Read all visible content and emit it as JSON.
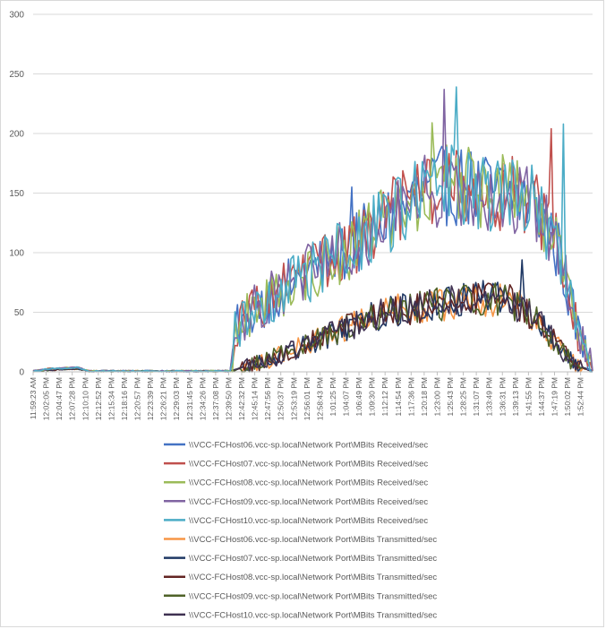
{
  "chart_data": {
    "type": "line",
    "title": "",
    "xlabel": "",
    "ylabel": "",
    "ylim": [
      0,
      300
    ],
    "yticks": [
      0,
      50,
      100,
      150,
      200,
      250,
      300
    ],
    "grid": true,
    "legend_position": "bottom",
    "x_tick_labels": [
      "11:59:23 AM",
      "12:02:05 PM",
      "12:04:47 PM",
      "12:07:28 PM",
      "12:10:10 PM",
      "12:12:52 PM",
      "12:15:34 PM",
      "12:18:16 PM",
      "12:20:57 PM",
      "12:23:39 PM",
      "12:26:21 PM",
      "12:29:03 PM",
      "12:31:45 PM",
      "12:34:26 PM",
      "12:37:08 PM",
      "12:39:50 PM",
      "12:42:32 PM",
      "12:45:14 PM",
      "12:47:56 PM",
      "12:50:37 PM",
      "12:53:19 PM",
      "12:56:01 PM",
      "12:58:43 PM",
      "1:01:25 PM",
      "1:04:07 PM",
      "1:06:49 PM",
      "1:09:30 PM",
      "1:12:12 PM",
      "1:14:54 PM",
      "1:17:36 PM",
      "1:20:18 PM",
      "1:23:00 PM",
      "1:25:43 PM",
      "1:28:25 PM",
      "1:31:07 PM",
      "1:33:49 PM",
      "1:36:31 PM",
      "1:39:13 PM",
      "1:41:55 PM",
      "1:44:37 PM",
      "1:47:19 PM",
      "1:50:02 PM",
      "1:52:44 PM"
    ],
    "x_tick_positions": [
      0,
      0.0233,
      0.0466,
      0.0699,
      0.0932,
      0.1165,
      0.1398,
      0.1631,
      0.1864,
      0.2097,
      0.233,
      0.2563,
      0.2796,
      0.3029,
      0.3262,
      0.3495,
      0.3728,
      0.3961,
      0.4194,
      0.4427,
      0.466,
      0.4893,
      0.5126,
      0.5359,
      0.5592,
      0.5825,
      0.6058,
      0.6291,
      0.6524,
      0.6757,
      0.699,
      0.7223,
      0.7456,
      0.7689,
      0.7922,
      0.8155,
      0.8388,
      0.8621,
      0.8854,
      0.9087,
      0.932,
      0.9553,
      0.9786
    ],
    "series": [
      {
        "name": "\\\\VCC-FCHost06.vcc-sp.local\\Network Port\\MBits Received/sec",
        "color": "#4472C4"
      },
      {
        "name": "\\\\VCC-FCHost07.vcc-sp.local\\Network Port\\MBits Received/sec",
        "color": "#C0504D"
      },
      {
        "name": "\\\\VCC-FCHost08.vcc-sp.local\\Network Port\\MBits Received/sec",
        "color": "#9BBB59"
      },
      {
        "name": "\\\\VCC-FCHost09.vcc-sp.local\\Network Port\\MBits Received/sec",
        "color": "#8064A2"
      },
      {
        "name": "\\\\VCC-FCHost10.vcc-sp.local\\Network Port\\MBits Received/sec",
        "color": "#4BACC6"
      },
      {
        "name": "\\\\VCC-FCHost06.vcc-sp.local\\Network Port\\MBits Transmitted/sec",
        "color": "#F79646"
      },
      {
        "name": "\\\\VCC-FCHost07.vcc-sp.local\\Network Port\\MBits Transmitted/sec",
        "color": "#1F3864"
      },
      {
        "name": "\\\\VCC-FCHost08.vcc-sp.local\\Network Port\\MBits Transmitted/sec",
        "color": "#632523"
      },
      {
        "name": "\\\\VCC-FCHost09.vcc-sp.local\\Network Port\\MBits Transmitted/sec",
        "color": "#4F6228"
      },
      {
        "name": "\\\\VCC-FCHost10.vcc-sp.local\\Network Port\\MBits Transmitted/sec",
        "color": "#3F3151"
      }
    ],
    "series_profile": {
      "received_envelope": [
        [
          0,
          0
        ],
        [
          0.03,
          2
        ],
        [
          0.08,
          3
        ],
        [
          0.1,
          0
        ],
        [
          0.355,
          0
        ],
        [
          0.36,
          35
        ],
        [
          0.4,
          55
        ],
        [
          0.45,
          70
        ],
        [
          0.5,
          85
        ],
        [
          0.55,
          100
        ],
        [
          0.6,
          115
        ],
        [
          0.65,
          135
        ],
        [
          0.7,
          150
        ],
        [
          0.75,
          158
        ],
        [
          0.8,
          152
        ],
        [
          0.85,
          150
        ],
        [
          0.9,
          140
        ],
        [
          0.94,
          100
        ],
        [
          0.97,
          40
        ],
        [
          1,
          0
        ]
      ],
      "transmitted_envelope": [
        [
          0,
          0
        ],
        [
          0.03,
          1
        ],
        [
          0.08,
          2
        ],
        [
          0.1,
          0
        ],
        [
          0.355,
          0
        ],
        [
          0.38,
          4
        ],
        [
          0.45,
          15
        ],
        [
          0.5,
          25
        ],
        [
          0.55,
          35
        ],
        [
          0.6,
          45
        ],
        [
          0.65,
          52
        ],
        [
          0.7,
          55
        ],
        [
          0.75,
          58
        ],
        [
          0.8,
          62
        ],
        [
          0.85,
          60
        ],
        [
          0.9,
          45
        ],
        [
          0.94,
          20
        ],
        [
          0.97,
          5
        ],
        [
          1,
          0
        ]
      ],
      "received_noise": 35,
      "transmitted_noise": 15,
      "points": 230,
      "peaks": [
        {
          "series": 3,
          "x": 0.733,
          "y": 237
        },
        {
          "series": 4,
          "x": 0.757,
          "y": 239
        },
        {
          "series": 2,
          "x": 0.715,
          "y": 209
        },
        {
          "series": 4,
          "x": 0.95,
          "y": 208
        },
        {
          "series": 1,
          "x": 0.925,
          "y": 204
        },
        {
          "series": 0,
          "x": 0.568,
          "y": 155
        },
        {
          "series": 6,
          "x": 0.875,
          "y": 94
        }
      ]
    }
  }
}
